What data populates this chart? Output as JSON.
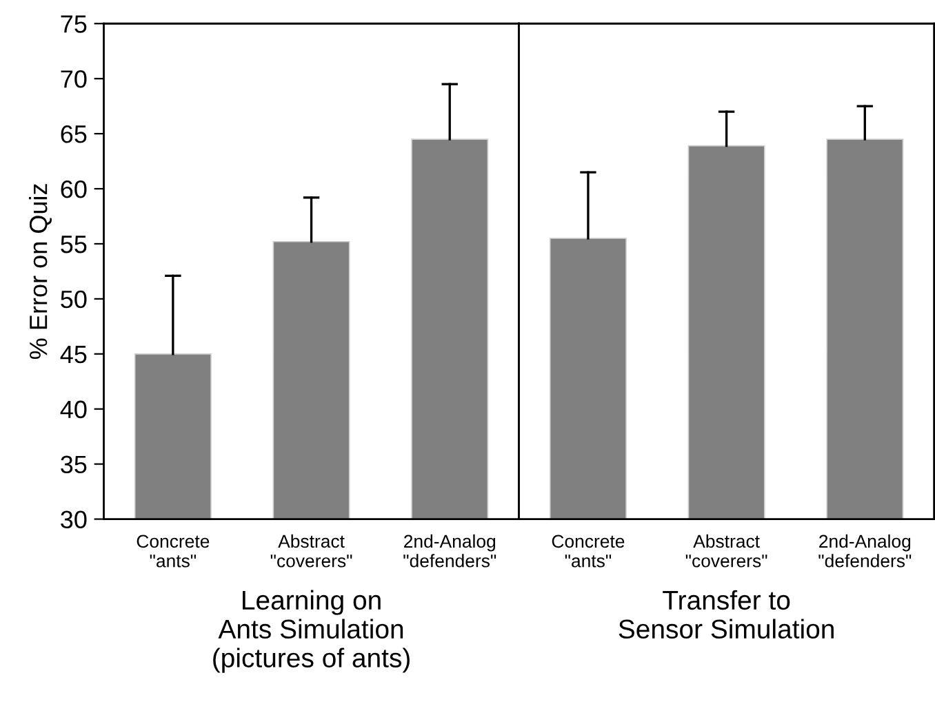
{
  "chart_data": [
    {
      "type": "bar",
      "xlabel": "Learning on\nAnts Simulation\n(pictures of ants)",
      "ylabel": "% Error on Quiz",
      "categories": [
        "Concrete\n\"ants\"",
        "Abstract\n\"coverers\"",
        "2nd-Analog\n\"defenders\""
      ],
      "values": [
        45.0,
        55.2,
        64.5
      ],
      "errors": [
        [
          45.0,
          52.1
        ],
        [
          55.2,
          59.2
        ],
        [
          64.5,
          69.5
        ]
      ],
      "color": "#808080",
      "ylim": [
        30,
        75
      ],
      "yticks": [
        30,
        35,
        40,
        45,
        50,
        55,
        60,
        65,
        70,
        75
      ],
      "grid": false
    },
    {
      "type": "bar",
      "xlabel": "Transfer to\nSensor Simulation",
      "categories": [
        "Concrete\n\"ants\"",
        "Abstract\n\"coverers\"",
        "2nd-Analog\n\"defenders\""
      ],
      "values": [
        55.5,
        63.9,
        64.5
      ],
      "errors": [
        [
          55.5,
          61.5
        ],
        [
          63.9,
          67.0
        ],
        [
          64.5,
          67.5
        ]
      ],
      "color": "#808080",
      "ylim": [
        30,
        75
      ],
      "yticks": [
        30,
        35,
        40,
        45,
        50,
        55,
        60,
        65,
        70,
        75
      ],
      "tick_labels": "x",
      "grid": false
    }
  ]
}
